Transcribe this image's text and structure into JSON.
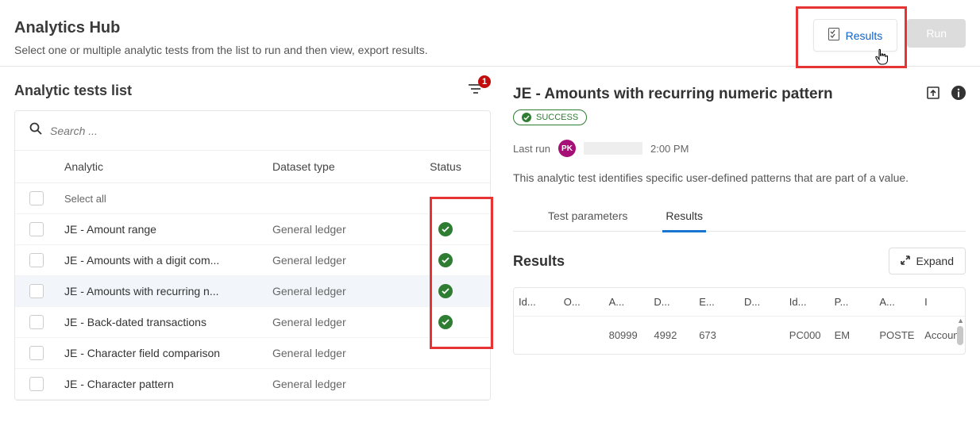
{
  "header": {
    "title": "Analytics Hub",
    "subtitle": "Select one or multiple analytic tests from the list to run and then view, export results.",
    "results_btn": "Results",
    "run_btn": "Run"
  },
  "list": {
    "title": "Analytic tests list",
    "filter_count": "1",
    "search_placeholder": "Search ...",
    "col_analytic": "Analytic",
    "col_dataset": "Dataset type",
    "col_status": "Status",
    "select_all": "Select all",
    "rows": [
      {
        "name": "JE - Amount range",
        "dataset": "General ledger",
        "status": "success",
        "selected": false
      },
      {
        "name": "JE - Amounts with a digit com...",
        "dataset": "General ledger",
        "status": "success",
        "selected": false
      },
      {
        "name": "JE - Amounts with recurring n...",
        "dataset": "General ledger",
        "status": "success",
        "selected": true
      },
      {
        "name": "JE - Back-dated transactions",
        "dataset": "General ledger",
        "status": "success",
        "selected": false
      },
      {
        "name": "JE - Character field comparison",
        "dataset": "General ledger",
        "status": "none",
        "selected": false
      },
      {
        "name": "JE - Character pattern",
        "dataset": "General ledger",
        "status": "none",
        "selected": false
      }
    ]
  },
  "detail": {
    "title": "JE - Amounts with recurring numeric pattern",
    "status_label": "SUCCESS",
    "lastrun_label": "Last run",
    "avatar": "PK",
    "time": "2:00 PM",
    "description": "This analytic test identifies specific user-defined patterns that are part of a value.",
    "tab_params": "Test parameters",
    "tab_results": "Results",
    "results_heading": "Results",
    "expand_label": "Expand",
    "columns": [
      "Id...",
      "O...",
      "A...",
      "D...",
      "E...",
      "D...",
      "Id...",
      "P...",
      "A...",
      "I"
    ],
    "row": [
      "",
      "",
      "80999",
      "4992",
      "673",
      "",
      "PC000",
      "EM",
      "POSTE",
      "Accoun"
    ]
  },
  "colors": {
    "highlight": "#e63333",
    "link": "#0f62c9",
    "success": "#2e7d32",
    "tab_active": "#1876d1",
    "avatar_bg": "#a50f76",
    "badge_bg": "#c30c0c"
  }
}
